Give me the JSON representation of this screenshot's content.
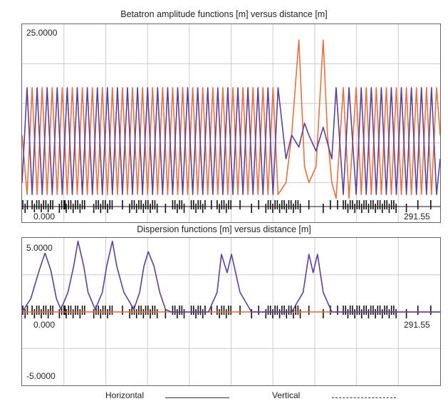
{
  "titles": {
    "beta": "Betatron amplitude functions [m] versus distance [m]",
    "disp": "Dispersion functions [m] versus distance [m]"
  },
  "legend": {
    "horizontal": "Horizontal",
    "vertical": "Vertical"
  },
  "colors": {
    "horizontal": "#e8703a",
    "vertical": "#5b3f9c",
    "grid": "#cccccc",
    "magnets": "#111111"
  },
  "chart_data": [
    {
      "type": "line",
      "title": "Betatron amplitude functions [m] versus distance [m]",
      "xlim": [
        0,
        291.55
      ],
      "ylim": [
        0,
        25
      ],
      "x_tick_labels": [
        "0.000",
        "291.55"
      ],
      "y_tick_labels": [
        "25.0000"
      ],
      "grid": true,
      "series": [
        {
          "name": "Horizontal",
          "x": [
            0,
            3.5,
            7,
            10.5,
            14,
            17.5,
            21,
            24.5,
            28,
            31.5,
            35,
            38.5,
            42,
            45.5,
            49,
            52.5,
            56,
            59.5,
            63,
            66.5,
            70,
            73.5,
            77,
            80.5,
            84,
            87.5,
            91,
            94.5,
            98,
            101.5,
            105,
            108.5,
            112,
            115.5,
            119,
            122.5,
            126,
            129.5,
            133,
            136.5,
            140,
            143.5,
            147,
            150.5,
            154,
            157.5,
            161,
            164.5,
            168,
            171.5,
            175,
            178.5,
            184,
            188,
            193,
            197,
            200,
            205,
            210,
            213,
            216,
            219,
            224,
            228,
            233,
            236.5,
            240,
            243.5,
            247,
            250.5,
            254,
            257.5,
            261,
            264.5,
            268,
            271.5,
            275,
            278.5,
            282,
            285.5,
            289,
            291.55
          ],
          "y": [
            11,
            3.5,
            17,
            3.5,
            17,
            3.5,
            17,
            3.5,
            17,
            3.5,
            17,
            3.5,
            17,
            3.5,
            17,
            3.5,
            17,
            3.5,
            17,
            3.5,
            17,
            3.5,
            17,
            3.5,
            17,
            3.5,
            17,
            3.5,
            17,
            3.5,
            17,
            3.5,
            17,
            3.5,
            17,
            3.5,
            17,
            3.5,
            17,
            3.5,
            17,
            3.5,
            17,
            3.5,
            17,
            3.5,
            17,
            3.5,
            17,
            3.5,
            17,
            3.5,
            5,
            11,
            23,
            7,
            5,
            7,
            23,
            11,
            5,
            3,
            17,
            3,
            17,
            3.5,
            17,
            3.5,
            17,
            3.5,
            17,
            3.5,
            17,
            3.5,
            17,
            3.5,
            17,
            3.5,
            17,
            3.5,
            17,
            11
          ]
        },
        {
          "name": "Vertical",
          "x": [
            0,
            3.5,
            7,
            10.5,
            14,
            17.5,
            21,
            24.5,
            28,
            31.5,
            35,
            38.5,
            42,
            45.5,
            49,
            52.5,
            56,
            59.5,
            63,
            66.5,
            70,
            73.5,
            77,
            80.5,
            84,
            87.5,
            91,
            94.5,
            98,
            101.5,
            105,
            108.5,
            112,
            115.5,
            119,
            122.5,
            126,
            129.5,
            133,
            136.5,
            140,
            143.5,
            147,
            150.5,
            154,
            157.5,
            161,
            164.5,
            168,
            171.5,
            175,
            178.5,
            184,
            188,
            193,
            197,
            200,
            205,
            210,
            213,
            216,
            219,
            224,
            228,
            233,
            236.5,
            240,
            243.5,
            247,
            250.5,
            254,
            257.5,
            261,
            264.5,
            268,
            271.5,
            275,
            278.5,
            282,
            285.5,
            289,
            291.55
          ],
          "y": [
            5,
            17,
            3.5,
            17,
            3.5,
            17,
            3.5,
            17,
            3.5,
            17,
            3.5,
            17,
            3.5,
            17,
            3.5,
            17,
            3.5,
            17,
            3.5,
            17,
            3.5,
            17,
            3.5,
            17,
            3.5,
            17,
            3.5,
            17,
            3.5,
            17,
            3.5,
            17,
            3.5,
            17,
            3.5,
            17,
            3.5,
            17,
            3.5,
            17,
            3.5,
            17,
            3.5,
            17,
            3.5,
            17,
            3.5,
            17,
            3.5,
            17,
            3.5,
            17,
            8,
            11,
            9.5,
            12.5,
            11,
            9,
            12,
            10,
            8,
            17,
            3.5,
            17,
            3.5,
            17,
            3.5,
            17,
            3.5,
            17,
            3.5,
            17,
            3.5,
            17,
            3.5,
            17,
            3.5,
            17,
            3.5,
            17,
            3.5,
            8
          ]
        }
      ]
    },
    {
      "type": "line",
      "title": "Dispersion functions [m] versus distance [m]",
      "xlim": [
        0,
        291.55
      ],
      "ylim": [
        -5,
        5
      ],
      "x_tick_labels": [
        "0.000",
        "291.55"
      ],
      "y_tick_labels": [
        "5.0000",
        "-5.0000"
      ],
      "grid": true,
      "series": [
        {
          "name": "Horizontal",
          "x": [
            0,
            6,
            12,
            16,
            20,
            24,
            27,
            32,
            36,
            39,
            43,
            46,
            51,
            56,
            59,
            63,
            66,
            71,
            78,
            82,
            85,
            88,
            92,
            96,
            100,
            104,
            130,
            136,
            139,
            143,
            146,
            152,
            160,
            188,
            196,
            200,
            203,
            206,
            210,
            216,
            227,
            291.55
          ],
          "y": [
            0,
            1,
            3.2,
            4.5,
            3.2,
            1,
            0.2,
            1.5,
            3.5,
            5.4,
            3.5,
            1.5,
            0.2,
            1.5,
            3.5,
            5.4,
            3.5,
            1.5,
            0.2,
            1.5,
            3.5,
            4.6,
            3.5,
            1.5,
            0.2,
            0,
            0,
            1.5,
            4.4,
            3,
            4.4,
            1.5,
            0,
            0,
            1.5,
            4.4,
            3,
            4.4,
            1.5,
            0,
            0,
            0
          ]
        },
        {
          "name": "Vertical",
          "x": [
            0,
            291.55
          ],
          "y": [
            0,
            0
          ]
        }
      ]
    }
  ]
}
